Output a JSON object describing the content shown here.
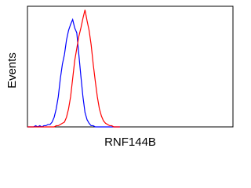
{
  "chart_data": {
    "type": "line",
    "x_label": "RNF144B",
    "y_label": "Events",
    "x": [
      0,
      1,
      2,
      3,
      4,
      5,
      6,
      7,
      8,
      9,
      10,
      11,
      12,
      13,
      14,
      15,
      16,
      17,
      18,
      19,
      20,
      21,
      22,
      23,
      24,
      25,
      26,
      27,
      28,
      29,
      30,
      31,
      32,
      33,
      34,
      35,
      36,
      37,
      38,
      39,
      40,
      41,
      42,
      43,
      44,
      45
    ],
    "xlim": [
      0,
      100
    ],
    "ylim": [
      0,
      100
    ],
    "series": [
      {
        "color": "#0000ff",
        "values": [
          0,
          0,
          0,
          0,
          1,
          0,
          1,
          0,
          1,
          1,
          2,
          2,
          4,
          8,
          15,
          25,
          40,
          52,
          60,
          72,
          80,
          85,
          89,
          82,
          78,
          60,
          42,
          25,
          12,
          6,
          3,
          1,
          1,
          0,
          0,
          0,
          0,
          0,
          0,
          0,
          0,
          0,
          0,
          0,
          0,
          0
        ]
      },
      {
        "color": "#ff0000",
        "values": [
          0,
          0,
          0,
          0,
          0,
          0,
          0,
          0,
          0,
          0,
          0,
          0,
          0,
          0,
          1,
          1,
          2,
          3,
          4,
          8,
          15,
          25,
          40,
          55,
          65,
          75,
          82,
          90,
          97,
          88,
          80,
          68,
          52,
          38,
          25,
          15,
          9,
          5,
          3,
          2,
          1,
          1,
          0,
          0,
          0,
          0
        ]
      }
    ]
  }
}
